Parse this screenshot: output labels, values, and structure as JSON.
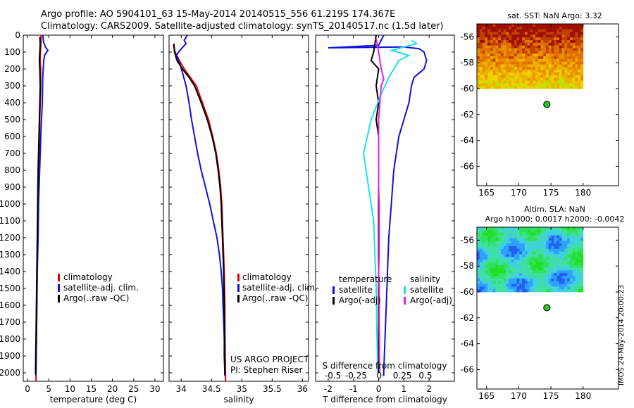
{
  "header": {
    "line1": "Argo profile: AO 5904101_63 15-May-2014 20140515_556 61.219S 174.367E",
    "line2": "Climatology: CARS2009. Satellite-adjusted climatology: synTS_20140517.nc (1.5d later)"
  },
  "stamp": "IMOS 24-May-2014 20:00:23",
  "colors": {
    "climatology": "#e00000",
    "satellite": "#1010e0",
    "argo": "#000000",
    "satellite_diff": "#22e0e8",
    "argo_adj_s": "#e020e0",
    "float_marker": "#22cc22"
  },
  "chart_data": [
    {
      "type": "line",
      "id": "temperature",
      "xlabel": "temperature (deg C)",
      "ylabel": "",
      "xlim": [
        -1,
        32
      ],
      "ylim": [
        2050,
        0
      ],
      "xticks": [
        0,
        5,
        10,
        15,
        20,
        25,
        30
      ],
      "yticks": [
        0,
        100,
        200,
        300,
        400,
        500,
        600,
        700,
        800,
        900,
        1000,
        1100,
        1200,
        1300,
        1400,
        1500,
        1600,
        1700,
        1800,
        1900,
        2000
      ],
      "legend": [
        "climatology",
        "satellite-adj. clim.",
        "Argo(..raw -QC)"
      ],
      "legend_position": "lower-center",
      "series": [
        {
          "name": "climatology",
          "color": "#e00000",
          "points": [
            [
              3.2,
              0
            ],
            [
              3.2,
              40
            ],
            [
              3.1,
              80
            ],
            [
              3.0,
              120
            ],
            [
              3.0,
              160
            ],
            [
              3.1,
              200
            ],
            [
              3.1,
              300
            ],
            [
              3.0,
              400
            ],
            [
              2.9,
              500
            ],
            [
              2.8,
              600
            ],
            [
              2.7,
              700
            ],
            [
              2.6,
              800
            ],
            [
              2.5,
              900
            ],
            [
              2.45,
              1000
            ],
            [
              2.4,
              1200
            ],
            [
              2.3,
              1400
            ],
            [
              2.2,
              1600
            ],
            [
              2.1,
              1800
            ],
            [
              2.0,
              2000
            ],
            [
              2.0,
              2050
            ]
          ]
        },
        {
          "name": "satellite-adj. clim.",
          "color": "#1010e0",
          "points": [
            [
              3.6,
              0
            ],
            [
              3.8,
              40
            ],
            [
              4.2,
              70
            ],
            [
              4.8,
              90
            ],
            [
              4.0,
              120
            ],
            [
              3.8,
              160
            ],
            [
              3.6,
              250
            ],
            [
              3.5,
              400
            ],
            [
              3.2,
              550
            ],
            [
              3.0,
              700
            ],
            [
              2.8,
              850
            ],
            [
              2.6,
              1000
            ],
            [
              2.5,
              1200
            ],
            [
              2.3,
              1400
            ],
            [
              2.2,
              1600
            ],
            [
              2.1,
              1800
            ],
            [
              2.0,
              2000
            ],
            [
              2.0,
              2020
            ]
          ]
        },
        {
          "name": "Argo(..raw -QC)",
          "color": "#000000",
          "points": [
            [
              2.9,
              10
            ],
            [
              3.0,
              50
            ],
            [
              2.9,
              100
            ],
            [
              2.8,
              150
            ],
            [
              2.9,
              200
            ],
            [
              3.0,
              300
            ],
            [
              2.9,
              400
            ],
            [
              2.8,
              500
            ],
            [
              2.7,
              600
            ],
            [
              2.6,
              700
            ],
            [
              2.5,
              800
            ],
            [
              2.45,
              900
            ],
            [
              2.4,
              1000
            ],
            [
              2.3,
              1200
            ],
            [
              2.2,
              1400
            ],
            [
              2.1,
              1600
            ],
            [
              2.0,
              1800
            ],
            [
              1.9,
              1950
            ],
            [
              1.9,
              2010
            ]
          ]
        }
      ]
    },
    {
      "type": "line",
      "id": "salinity",
      "xlabel": "salinity",
      "ylabel": "",
      "xlim": [
        33.8,
        36.1
      ],
      "ylim": [
        2050,
        0
      ],
      "xticks": [
        34,
        34.5,
        35,
        35.5,
        36
      ],
      "xtick_labels": [
        "34",
        "34.5",
        "35",
        "35.5",
        "36"
      ],
      "legend": [
        "climatology",
        "satellite-adj. clim.",
        "Argo(..raw -QC)"
      ],
      "legend_position": "lower-right",
      "annotations": [
        "US ARGO PROJECT",
        "PI: Stephen Riser"
      ],
      "series": [
        {
          "name": "climatology",
          "color": "#e00000",
          "points": [
            [
              33.87,
              60
            ],
            [
              33.9,
              100
            ],
            [
              33.97,
              150
            ],
            [
              34.05,
              200
            ],
            [
              34.15,
              250
            ],
            [
              34.25,
              300
            ],
            [
              34.35,
              400
            ],
            [
              34.45,
              500
            ],
            [
              34.52,
              600
            ],
            [
              34.58,
              700
            ],
            [
              34.62,
              800
            ],
            [
              34.65,
              900
            ],
            [
              34.67,
              1000
            ],
            [
              34.69,
              1200
            ],
            [
              34.71,
              1400
            ],
            [
              34.72,
              1600
            ],
            [
              34.72,
              1800
            ],
            [
              34.73,
              2000
            ],
            [
              34.73,
              2050
            ]
          ]
        },
        {
          "name": "satellite-adj. clim.",
          "color": "#1010e0",
          "points": [
            [
              34.1,
              0
            ],
            [
              34.05,
              30
            ],
            [
              34.08,
              50
            ],
            [
              33.98,
              90
            ],
            [
              33.92,
              120
            ],
            [
              33.97,
              160
            ],
            [
              34.02,
              220
            ],
            [
              34.08,
              300
            ],
            [
              34.13,
              400
            ],
            [
              34.17,
              500
            ],
            [
              34.22,
              600
            ],
            [
              34.27,
              700
            ],
            [
              34.33,
              800
            ],
            [
              34.4,
              900
            ],
            [
              34.47,
              1000
            ],
            [
              34.53,
              1100
            ],
            [
              34.59,
              1200
            ],
            [
              34.63,
              1300
            ],
            [
              34.66,
              1400
            ],
            [
              34.68,
              1500
            ],
            [
              34.69,
              1600
            ],
            [
              34.7,
              1700
            ],
            [
              34.71,
              1800
            ],
            [
              34.71,
              1900
            ],
            [
              34.72,
              2000
            ],
            [
              34.72,
              2020
            ]
          ]
        },
        {
          "name": "Argo(..raw -QC)",
          "color": "#000000",
          "points": [
            [
              33.88,
              50
            ],
            [
              33.89,
              100
            ],
            [
              33.93,
              150
            ],
            [
              34.02,
              200
            ],
            [
              34.13,
              250
            ],
            [
              34.22,
              300
            ],
            [
              34.33,
              400
            ],
            [
              34.43,
              500
            ],
            [
              34.51,
              600
            ],
            [
              34.57,
              700
            ],
            [
              34.61,
              800
            ],
            [
              34.64,
              900
            ],
            [
              34.66,
              1000
            ],
            [
              34.68,
              1200
            ],
            [
              34.7,
              1400
            ],
            [
              34.71,
              1600
            ],
            [
              34.72,
              1800
            ],
            [
              34.72,
              2000
            ],
            [
              34.72,
              2010
            ]
          ]
        }
      ]
    },
    {
      "type": "line",
      "id": "difference",
      "xlabel": "T difference from climatology",
      "xlabel_top": "S difference from climatology",
      "ylabel": "",
      "xlim": [
        -2.5,
        3.0
      ],
      "ylim": [
        2050,
        0
      ],
      "xticks": [
        -2,
        -1,
        0,
        1,
        2
      ],
      "xticks_top": [
        -0.5,
        -0.25,
        0,
        0.25,
        0.5
      ],
      "legend_temperature": [
        "temperature",
        "satellite",
        "Argo(-adj)"
      ],
      "legend_salinity": [
        "salinity",
        "satellite",
        "Argo(-adj)"
      ],
      "legend_position": "lower-center",
      "series": [
        {
          "name": "temperature satellite",
          "color": "#1010e0",
          "points": [
            [
              0.2,
              0
            ],
            [
              0.0,
              60
            ],
            [
              -2.0,
              75
            ],
            [
              1.0,
              70
            ],
            [
              1.6,
              80
            ],
            [
              1.8,
              100
            ],
            [
              1.9,
              150
            ],
            [
              1.8,
              200
            ],
            [
              1.4,
              250
            ],
            [
              1.3,
              300
            ],
            [
              1.2,
              400
            ],
            [
              1.0,
              500
            ],
            [
              0.8,
              600
            ],
            [
              0.6,
              800
            ],
            [
              0.5,
              1000
            ],
            [
              0.4,
              1200
            ],
            [
              0.35,
              1400
            ],
            [
              0.3,
              1600
            ],
            [
              0.25,
              1800
            ],
            [
              0.2,
              2000
            ],
            [
              0.2,
              2020
            ]
          ]
        },
        {
          "name": "temperature Argo(-adj)",
          "color": "#000000",
          "points": [
            [
              -0.1,
              0
            ],
            [
              -0.2,
              100
            ],
            [
              -0.3,
              150
            ],
            [
              0.0,
              200
            ],
            [
              -0.1,
              300
            ],
            [
              0.0,
              400
            ],
            [
              -0.1,
              500
            ],
            [
              0.0,
              600
            ],
            [
              0.0,
              800
            ],
            [
              0.0,
              1000
            ],
            [
              0.0,
              1200
            ],
            [
              0.0,
              1600
            ],
            [
              0.0,
              2000
            ]
          ]
        },
        {
          "name": "salinity satellite",
          "color": "#22e0e8",
          "points": [
            [
              1.3,
              30
            ],
            [
              1.5,
              50
            ],
            [
              0.5,
              90
            ],
            [
              1.2,
              120
            ],
            [
              0.8,
              150
            ],
            [
              0.4,
              250
            ],
            [
              0.1,
              350
            ],
            [
              -0.3,
              500
            ],
            [
              -0.6,
              700
            ],
            [
              -0.4,
              900
            ],
            [
              -0.2,
              1100
            ],
            [
              -0.15,
              1300
            ],
            [
              -0.1,
              1500
            ],
            [
              -0.08,
              1700
            ],
            [
              -0.05,
              1900
            ],
            [
              -0.05,
              2000
            ]
          ]
        },
        {
          "name": "salinity Argo(-adj)",
          "color": "#e020e0",
          "points": [
            [
              -0.1,
              20
            ],
            [
              0.0,
              100
            ],
            [
              0.1,
              200
            ],
            [
              0.2,
              260
            ],
            [
              0.1,
              300
            ],
            [
              0.05,
              400
            ],
            [
              0.0,
              500
            ],
            [
              0.0,
              600
            ],
            [
              0.0,
              700
            ],
            [
              0.0,
              800
            ],
            [
              0.0,
              900
            ],
            [
              0.02,
              1000
            ],
            [
              0.02,
              1100
            ],
            [
              0.02,
              1200
            ],
            [
              0.02,
              1300
            ],
            [
              0.0,
              1400
            ],
            [
              0.02,
              1500
            ],
            [
              0.02,
              1600
            ],
            [
              0.02,
              1700
            ],
            [
              0.03,
              1800
            ],
            [
              0.03,
              1900
            ],
            [
              0.04,
              2000
            ]
          ]
        }
      ]
    },
    {
      "type": "heatmap",
      "id": "sst-map",
      "title": "sat. SST: NaN Argo: 3.32",
      "xlim": [
        163.5,
        185.5
      ],
      "ylim": [
        -67.5,
        -55
      ],
      "xticks": [
        165,
        170,
        175,
        180
      ],
      "yticks": [
        -56,
        -58,
        -60,
        -62,
        -64,
        -66
      ],
      "data_extent": {
        "lon": [
          163.5,
          180
        ],
        "lat": [
          -60,
          -55
        ]
      },
      "palette": [
        "#00e000",
        "#60e000",
        "#c0e000",
        "#f0d000",
        "#f0b000",
        "#e89000",
        "#e07000",
        "#c04000",
        "#a01000"
      ],
      "float_position": {
        "lon": 174.367,
        "lat": -61.219
      }
    },
    {
      "type": "heatmap",
      "id": "sla-map",
      "title": "Altim. SLA: NaN",
      "subtitle": "Argo h1000: 0.0017 h2000: -0.0042",
      "xlim": [
        163.5,
        185.5
      ],
      "ylim": [
        -67.5,
        -55
      ],
      "xticks": [
        165,
        170,
        175,
        180
      ],
      "yticks": [
        -56,
        -58,
        -60,
        -62,
        -64,
        -66
      ],
      "data_extent": {
        "lon": [
          163.5,
          180
        ],
        "lat": [
          -60,
          -55
        ]
      },
      "palette": [
        "#1010c0",
        "#2060f0",
        "#30a0ff",
        "#40d0e0",
        "#40e0a0",
        "#30e060",
        "#20e020",
        "#a0e020",
        "#f0f000"
      ],
      "float_position": {
        "lon": 174.367,
        "lat": -61.219
      }
    }
  ]
}
